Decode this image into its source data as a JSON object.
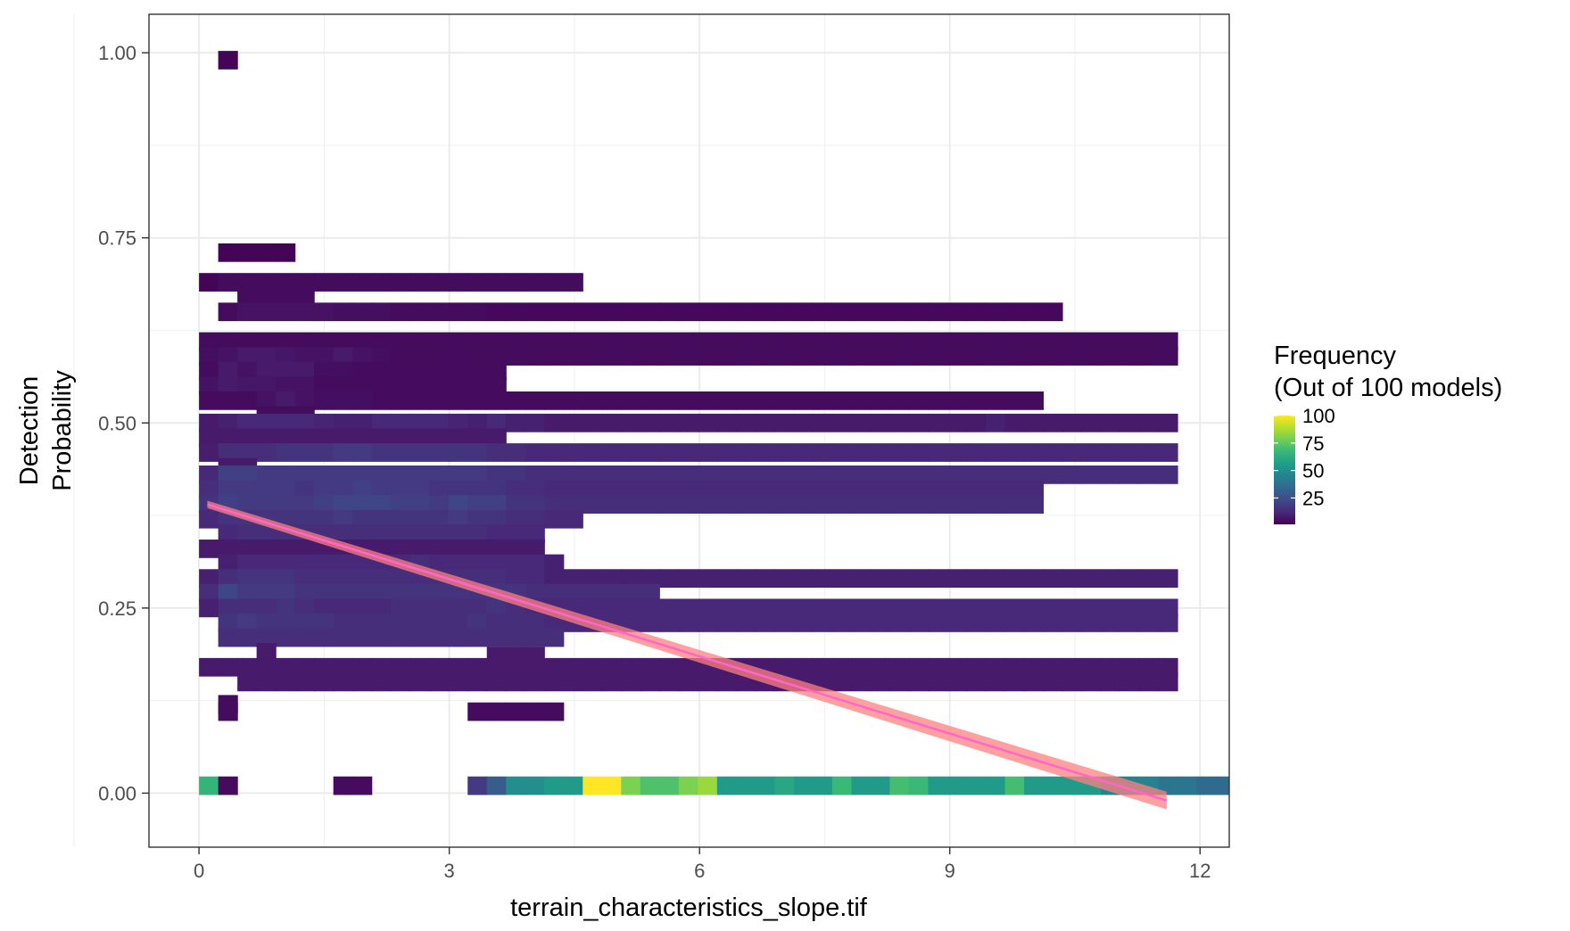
{
  "chart_data": {
    "type": "heatmap",
    "title": "",
    "xlabel": "terrain_characteristics_slope.tif",
    "ylabel": [
      "Detection",
      "Probability"
    ],
    "xlim": [
      -0.6,
      12.35
    ],
    "ylim": [
      -0.073,
      1.052
    ],
    "x_ticks": [
      0,
      3,
      6,
      9,
      12
    ],
    "x_tick_labels": [
      "0",
      "3",
      "6",
      "9",
      "12"
    ],
    "y_ticks": [
      0,
      0.25,
      0.5,
      0.75,
      1
    ],
    "y_tick_labels": [
      "0.00",
      "0.25",
      "0.50",
      "0.75",
      "1.00"
    ],
    "grid": true,
    "bin_width": 0.23,
    "bin_height": 0.025,
    "x_start": 0,
    "legend": {
      "title_line1": "Frequency",
      "title_line2": "(Out of 100 models)",
      "placement": "right",
      "range": [
        1,
        100
      ],
      "ticks": [
        100,
        75,
        50,
        25
      ],
      "tick_labels": [
        "100",
        "75",
        "50",
        "25"
      ],
      "colors": [
        "#440154",
        "#482878",
        "#3e4989",
        "#31688e",
        "#26828e",
        "#1f9e89",
        "#35b779",
        "#6ece58",
        "#b5de2b",
        "#fde725"
      ]
    },
    "rows": [
      {
        "y": 0.99,
        "start": 1,
        "counts": [
          2
        ]
      },
      {
        "y": 0.73,
        "start": 1,
        "counts": [
          2,
          2,
          2,
          2
        ]
      },
      {
        "y": 0.69,
        "start": 0,
        "counts": [
          2,
          4,
          4,
          4,
          4,
          4,
          4,
          4,
          4,
          4,
          4,
          4,
          4,
          4,
          4,
          4,
          4,
          4,
          4,
          4
        ]
      },
      {
        "y": 0.67,
        "start": 2,
        "counts": [
          4,
          4,
          4,
          4
        ]
      },
      {
        "y": 0.65,
        "start": 1,
        "counts": [
          4,
          6,
          6,
          6,
          6,
          6,
          5,
          5,
          5,
          4,
          4,
          4,
          4,
          4,
          3,
          3,
          3,
          3,
          3,
          3,
          3,
          3,
          3,
          3,
          3,
          3,
          3,
          3,
          3,
          3,
          3,
          3,
          3,
          3,
          3,
          3,
          3,
          3,
          3,
          3,
          3,
          3,
          3,
          3
        ]
      },
      {
        "y": 0.61,
        "start": 0,
        "counts": [
          4,
          4,
          4,
          4,
          4,
          4,
          4,
          4,
          4,
          4,
          4,
          4,
          4,
          4,
          4,
          4,
          4,
          4,
          4,
          4,
          4,
          4,
          4,
          4,
          4,
          4,
          4,
          4,
          4,
          4,
          4,
          4,
          4,
          4,
          4,
          4,
          4,
          4,
          4,
          4,
          4,
          4,
          4,
          4,
          4,
          4,
          4,
          4,
          4,
          4,
          4
        ]
      },
      {
        "y": 0.59,
        "start": 0,
        "counts": [
          5,
          6,
          8,
          8,
          7,
          6,
          6,
          8,
          6,
          5,
          4,
          4,
          4,
          4,
          4,
          4,
          4,
          4,
          4,
          4,
          4,
          4,
          4,
          4,
          4,
          4,
          4,
          4,
          4,
          4,
          4,
          4,
          4,
          4,
          4,
          4,
          4,
          4,
          4,
          4,
          4,
          4,
          4,
          4,
          4,
          4,
          4,
          4,
          4,
          4,
          4
        ]
      },
      {
        "y": 0.57,
        "start": 0,
        "counts": [
          4,
          8,
          6,
          8,
          8,
          8,
          5,
          5,
          4,
          4,
          4,
          4,
          4,
          4,
          4,
          4
        ]
      },
      {
        "y": 0.55,
        "start": 0,
        "counts": [
          6,
          8,
          7,
          7,
          6,
          6,
          4,
          4,
          4,
          4,
          4,
          4,
          4,
          4,
          4,
          4
        ]
      },
      {
        "y": 0.53,
        "start": 0,
        "counts": [
          4,
          4,
          4,
          6,
          8,
          6,
          5,
          5,
          5,
          4,
          4,
          4,
          4,
          4,
          4,
          4,
          4,
          4,
          4,
          4,
          4,
          4,
          4,
          4,
          4,
          4,
          4,
          4,
          4,
          4,
          4,
          4,
          4,
          4,
          4,
          4,
          4,
          4,
          4,
          4,
          4,
          4,
          4,
          4
        ]
      },
      {
        "y": 0.51,
        "start": 3,
        "counts": [
          4,
          4,
          4
        ]
      },
      {
        "y": 0.5,
        "start": 0,
        "counts": [
          8,
          10,
          12,
          12,
          12,
          12,
          11,
          10,
          10,
          12,
          12,
          12,
          12,
          11,
          10,
          12,
          10,
          10,
          8,
          8,
          8,
          8,
          8,
          8,
          8,
          8,
          8,
          8,
          8,
          8,
          8,
          8,
          8,
          8,
          8,
          8,
          8,
          8,
          8,
          8,
          8,
          10,
          8,
          8,
          8,
          8,
          8,
          8,
          8,
          8,
          8
        ]
      },
      {
        "y": 0.48,
        "start": 0,
        "counts": [
          8,
          8,
          8,
          8,
          8,
          8,
          8,
          8,
          8,
          8,
          8,
          8,
          8,
          8,
          8,
          8
        ]
      },
      {
        "y": 0.46,
        "start": 0,
        "counts": [
          9,
          14,
          14,
          14,
          16,
          16,
          16,
          18,
          18,
          16,
          16,
          16,
          16,
          16,
          16,
          14,
          14,
          12,
          12,
          12,
          12,
          12,
          12,
          12,
          12,
          12,
          12,
          12,
          12,
          12,
          12,
          12,
          12,
          12,
          12,
          12,
          12,
          12,
          12,
          12,
          12,
          12,
          12,
          12,
          12,
          12,
          12,
          12,
          12,
          12,
          12
        ]
      },
      {
        "y": 0.44,
        "start": 1,
        "counts": [
          8,
          8
        ]
      },
      {
        "y": 0.43,
        "start": 0,
        "counts": [
          12,
          20,
          20,
          18,
          18,
          18,
          18,
          18,
          18,
          18,
          18,
          18,
          18,
          18,
          18,
          16,
          16,
          14,
          14,
          14,
          14,
          14,
          14,
          14,
          14,
          14,
          14,
          14,
          14,
          14,
          14,
          14,
          14,
          14,
          14,
          14,
          14,
          14,
          14,
          14,
          14,
          14,
          14,
          14,
          14,
          14,
          14,
          14,
          14,
          14,
          14
        ]
      },
      {
        "y": 0.41,
        "start": 0,
        "counts": [
          14,
          18,
          18,
          18,
          18,
          16,
          18,
          18,
          20,
          18,
          18,
          18,
          16,
          16,
          16,
          16,
          14,
          14,
          12,
          12,
          12,
          12,
          12,
          12,
          12,
          12,
          12,
          12,
          12,
          12,
          12,
          12,
          12,
          12,
          12,
          12,
          12,
          12,
          12,
          12,
          12,
          12,
          12,
          12
        ]
      },
      {
        "y": 0.39,
        "start": 0,
        "counts": [
          16,
          20,
          18,
          18,
          18,
          18,
          20,
          22,
          22,
          22,
          20,
          20,
          18,
          22,
          20,
          20,
          16,
          16,
          14,
          14,
          14,
          14,
          14,
          14,
          14,
          14,
          14,
          14,
          14,
          14,
          14,
          14,
          14,
          14,
          14,
          14,
          14,
          14,
          14,
          14,
          14,
          14,
          14,
          14
        ]
      },
      {
        "y": 0.37,
        "start": 0,
        "counts": [
          12,
          16,
          16,
          16,
          16,
          16,
          16,
          18,
          16,
          16,
          16,
          16,
          16,
          18,
          16,
          16,
          14,
          14,
          12,
          12
        ]
      },
      {
        "y": 0.35,
        "start": 1,
        "counts": [
          12,
          14,
          14,
          14,
          14,
          14,
          14,
          14,
          14,
          14,
          14,
          14,
          14,
          14,
          12,
          12,
          12
        ]
      },
      {
        "y": 0.33,
        "start": 0,
        "counts": [
          8,
          8,
          8,
          8,
          8,
          8,
          8,
          8,
          8,
          8,
          8,
          8,
          8,
          8,
          8,
          8,
          8,
          8
        ]
      },
      {
        "y": 0.31,
        "start": 1,
        "counts": [
          10,
          12,
          12,
          12,
          12,
          12,
          12,
          12,
          12,
          12,
          14,
          12,
          12,
          12,
          12,
          12,
          12,
          10
        ]
      },
      {
        "y": 0.29,
        "start": 0,
        "counts": [
          10,
          14,
          16,
          16,
          16,
          14,
          14,
          14,
          14,
          14,
          14,
          14,
          14,
          14,
          14,
          14,
          12,
          12,
          10,
          10,
          10,
          10,
          10,
          10,
          10,
          10,
          10,
          10,
          10,
          10,
          10,
          10,
          10,
          10,
          10,
          10,
          10,
          10,
          10,
          10,
          10,
          10,
          10,
          10,
          10,
          10,
          10,
          10,
          10,
          10,
          10
        ]
      },
      {
        "y": 0.27,
        "start": 0,
        "counts": [
          14,
          22,
          18,
          18,
          18,
          16,
          16,
          16,
          16,
          16,
          16,
          16,
          16,
          16,
          16,
          16,
          16,
          14,
          14,
          14,
          14,
          14,
          14,
          14
        ]
      },
      {
        "y": 0.25,
        "start": 0,
        "counts": [
          10,
          14,
          14,
          14,
          16,
          14,
          12,
          12,
          12,
          12,
          14,
          14,
          14,
          14,
          14,
          16,
          14,
          12,
          12,
          12,
          12,
          12,
          12,
          12,
          12,
          12,
          12,
          12,
          12,
          12,
          12,
          12,
          12,
          12,
          12,
          12,
          12,
          12,
          12,
          12,
          12,
          12,
          12,
          12,
          12,
          12,
          12,
          12,
          12,
          12,
          12
        ]
      },
      {
        "y": 0.23,
        "start": 1,
        "counts": [
          16,
          18,
          16,
          16,
          16,
          16,
          14,
          14,
          14,
          14,
          14,
          14,
          14,
          16,
          14,
          14,
          14,
          12,
          12,
          12,
          12,
          12,
          12,
          12,
          12,
          12,
          12,
          12,
          12,
          12,
          12,
          12,
          12,
          12,
          12,
          12,
          12,
          12,
          12,
          12,
          12,
          12,
          12,
          12,
          12,
          12,
          12,
          12,
          12,
          12
        ]
      },
      {
        "y": 0.21,
        "start": 1,
        "counts": [
          14,
          14,
          14,
          14,
          14,
          14,
          14,
          14,
          14,
          14,
          14,
          14,
          14,
          14,
          14,
          14,
          14,
          14
        ]
      },
      {
        "y": 0.19,
        "start": 3,
        "counts": [
          8
        ]
      },
      {
        "y": 0.185,
        "start": 15,
        "counts": [
          8,
          8,
          8
        ]
      },
      {
        "y": 0.17,
        "start": 0,
        "counts": [
          8,
          8,
          8,
          8,
          8,
          8,
          8,
          8,
          8,
          8,
          8,
          8,
          8,
          8,
          8,
          8,
          8,
          8,
          8,
          8,
          8,
          8,
          8,
          8,
          8,
          8,
          8,
          8,
          8,
          8,
          8,
          8,
          8,
          8,
          8,
          8,
          8,
          8,
          8,
          8,
          8,
          8,
          8,
          8,
          8,
          8,
          8,
          8,
          8,
          8,
          8
        ]
      },
      {
        "y": 0.15,
        "start": 2,
        "counts": [
          8,
          8,
          8,
          8,
          8,
          8,
          8,
          8,
          8,
          8,
          8,
          8,
          8,
          8,
          8,
          8,
          8,
          8,
          8,
          8,
          8,
          8,
          8,
          8,
          8,
          8,
          8,
          8,
          8,
          8,
          8,
          8,
          8,
          8,
          8,
          8,
          8,
          8,
          8,
          8,
          8,
          8,
          8,
          8,
          8,
          8,
          8,
          8,
          8
        ]
      },
      {
        "y": 0.12,
        "start": 1,
        "counts": [
          4
        ]
      },
      {
        "y": 0.11,
        "start": 1,
        "counts": [
          4
        ]
      },
      {
        "y": 0.11,
        "start": 14,
        "counts": [
          4,
          4,
          4,
          4,
          4
        ]
      },
      {
        "y": 0.01,
        "start": 0,
        "counts": [
          66
        ]
      },
      {
        "y": 0.01,
        "start": 1,
        "counts": [
          4
        ]
      },
      {
        "y": 0.01,
        "start": 7,
        "counts": [
          4,
          4
        ]
      },
      {
        "y": 0.01,
        "start": 14,
        "counts": [
          18,
          30,
          50,
          50,
          55,
          55,
          100,
          100,
          80,
          72,
          72,
          80,
          85,
          55,
          55,
          55,
          60,
          55,
          55,
          68,
          55,
          55,
          70,
          68,
          55,
          55,
          55,
          55,
          70,
          55,
          55,
          55,
          55,
          45,
          45,
          45,
          40,
          40,
          35,
          35,
          35,
          35
        ]
      }
    ],
    "trend": {
      "x": [
        0.1,
        11.6
      ],
      "y": [
        0.39,
        -0.01
      ],
      "ci_lower": [
        0.385,
        -0.022
      ],
      "ci_upper": [
        0.395,
        0.002
      ],
      "line_color": "#ff66cc",
      "ribbon_color": "#ff8080"
    }
  }
}
